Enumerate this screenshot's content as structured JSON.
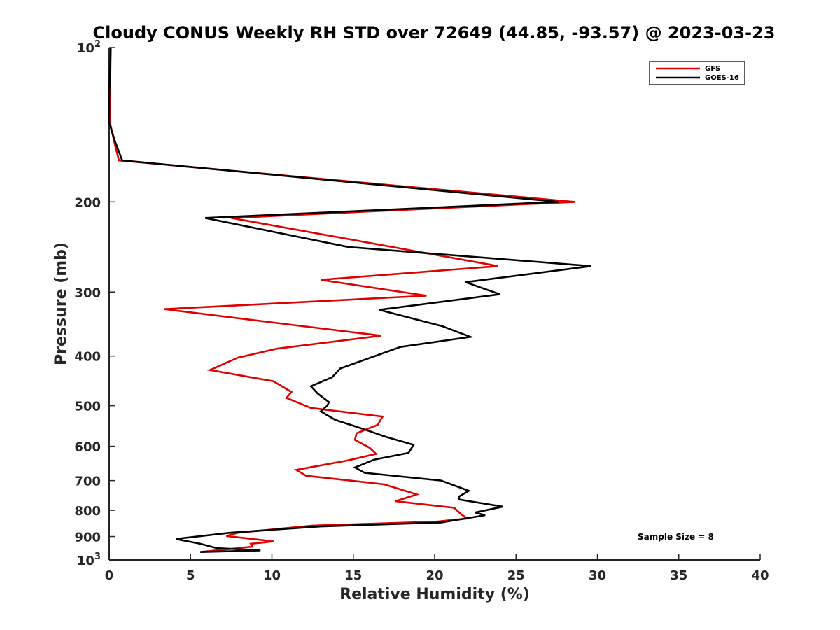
{
  "chart_data": {
    "type": "line",
    "title": "Cloudy CONUS Weekly RH STD over 72649 (44.85, -93.57) @ 2023-03-23",
    "xlabel": "Relative Humidity (%)",
    "ylabel": "Pressure (mb)",
    "xlim": [
      0,
      40
    ],
    "ylim": [
      100,
      1000
    ],
    "y_scale": "log",
    "y_reversed": true,
    "grid": false,
    "legend_position": "top-right",
    "x_ticks": [
      0,
      5,
      10,
      15,
      20,
      25,
      30,
      35,
      40
    ],
    "y_ticks": [
      {
        "value": 100,
        "base": "10",
        "exp": "2"
      },
      {
        "value": 200,
        "label": "200"
      },
      {
        "value": 300,
        "label": "300"
      },
      {
        "value": 400,
        "label": "400"
      },
      {
        "value": 500,
        "label": "500"
      },
      {
        "value": 600,
        "label": "600"
      },
      {
        "value": 700,
        "label": "700"
      },
      {
        "value": 800,
        "label": "800"
      },
      {
        "value": 900,
        "label": "900"
      },
      {
        "value": 1000,
        "base": "10",
        "exp": "3"
      }
    ],
    "annotation": "Sample Size = 8",
    "series": [
      {
        "name": "GFS",
        "color": "#e00000",
        "points": [
          [
            0.1,
            100
          ],
          [
            0.05,
            125
          ],
          [
            0.05,
            140
          ],
          [
            0.3,
            152
          ],
          [
            0.6,
            166
          ],
          [
            28.6,
            200
          ],
          [
            7.5,
            215
          ],
          [
            23.9,
            267
          ],
          [
            13.0,
            284
          ],
          [
            19.5,
            305
          ],
          [
            3.4,
            324
          ],
          [
            11.0,
            347
          ],
          [
            16.7,
            365
          ],
          [
            10.3,
            387
          ],
          [
            7.9,
            403
          ],
          [
            6.2,
            426
          ],
          [
            10.1,
            448
          ],
          [
            11.2,
            470
          ],
          [
            10.9,
            483
          ],
          [
            12.4,
            505
          ],
          [
            16.8,
            525
          ],
          [
            16.5,
            545
          ],
          [
            15.2,
            566
          ],
          [
            15.1,
            583
          ],
          [
            16.0,
            604
          ],
          [
            16.4,
            621
          ],
          [
            14.6,
            640
          ],
          [
            11.5,
            667
          ],
          [
            12.1,
            685
          ],
          [
            16.9,
            712
          ],
          [
            18.9,
            745
          ],
          [
            17.6,
            768
          ],
          [
            21.2,
            791
          ],
          [
            21.6,
            813
          ],
          [
            22.0,
            830
          ],
          [
            20.1,
            842
          ],
          [
            12.5,
            857
          ],
          [
            7.9,
            885
          ],
          [
            7.2,
            898
          ],
          [
            10.1,
            920
          ],
          [
            8.7,
            930
          ],
          [
            8.8,
            942
          ],
          [
            5.6,
            965
          ]
        ]
      },
      {
        "name": "GOES-16",
        "color": "#000000",
        "points": [
          [
            0.1,
            100
          ],
          [
            0.0,
            125
          ],
          [
            0.0,
            140
          ],
          [
            0.35,
            152
          ],
          [
            0.8,
            166
          ],
          [
            27.6,
            200
          ],
          [
            5.9,
            215
          ],
          [
            14.7,
            245
          ],
          [
            29.6,
            267
          ],
          [
            21.9,
            287
          ],
          [
            24.0,
            303
          ],
          [
            16.6,
            325
          ],
          [
            20.5,
            350
          ],
          [
            22.2,
            367
          ],
          [
            17.9,
            384
          ],
          [
            14.2,
            423
          ],
          [
            13.7,
            440
          ],
          [
            12.4,
            458
          ],
          [
            12.8,
            473
          ],
          [
            13.5,
            492
          ],
          [
            13.4,
            500
          ],
          [
            13.0,
            513
          ],
          [
            13.9,
            533
          ],
          [
            15.6,
            555
          ],
          [
            17.0,
            575
          ],
          [
            18.7,
            596
          ],
          [
            18.4,
            618
          ],
          [
            16.3,
            637
          ],
          [
            15.1,
            660
          ],
          [
            15.7,
            676
          ],
          [
            20.4,
            700
          ],
          [
            22.1,
            733
          ],
          [
            21.5,
            752
          ],
          [
            21.5,
            762
          ],
          [
            24.2,
            787
          ],
          [
            22.5,
            808
          ],
          [
            23.1,
            818
          ],
          [
            20.4,
            845
          ],
          [
            13.0,
            860
          ],
          [
            7.4,
            885
          ],
          [
            4.1,
            910
          ],
          [
            5.6,
            930
          ],
          [
            6.6,
            948
          ],
          [
            9.3,
            958
          ],
          [
            5.6,
            965
          ]
        ]
      }
    ]
  }
}
